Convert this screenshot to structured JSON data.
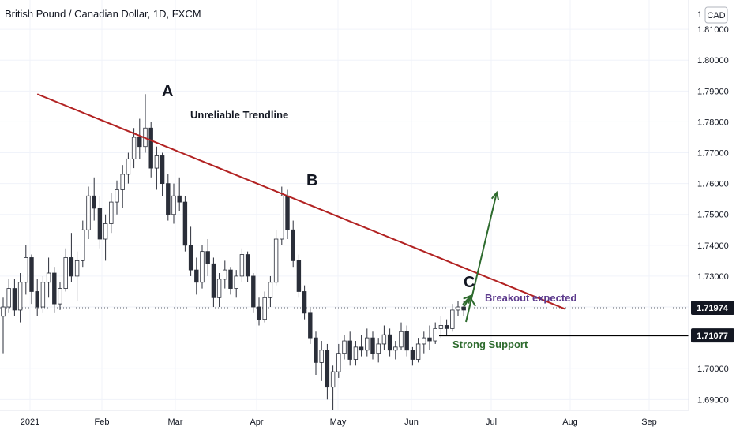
{
  "header": {
    "title": "British Pound / Canadian Dollar, 1D, FXCM",
    "currency_button": "CAD",
    "top_tick": "1"
  },
  "chart_data": {
    "type": "candlestick",
    "title": "British Pound / Canadian Dollar, 1D, FXCM",
    "y_ticks": [
      "1.81000",
      "1.80000",
      "1.79000",
      "1.78000",
      "1.77000",
      "1.76000",
      "1.75000",
      "1.74000",
      "1.73000",
      "1.72000",
      "1.70000",
      "1.69000"
    ],
    "x_ticks": [
      "2021",
      "Feb",
      "Mar",
      "Apr",
      "May",
      "Jun",
      "Jul",
      "Aug",
      "Sep"
    ],
    "ylim": [
      1.6865,
      1.8195
    ],
    "price_labels": {
      "last": "1.71974",
      "support": "1.71077"
    },
    "last_price": 1.71974,
    "support_price": 1.71077,
    "colors": {
      "up": "#26a69a",
      "down": "#ef5350",
      "trendline": "#b22222",
      "arrow": "#2e6b2e",
      "support_line": "#000000",
      "breakout_text": "#5c3a8c",
      "support_text": "#2e6b2e",
      "dotted": "#5d606b"
    },
    "annotations": {
      "A": "A",
      "B": "B",
      "C": "C",
      "trendline_label": "Unreliable Trendline",
      "breakout_label": "Breakout expected",
      "support_label": "Strong Support"
    },
    "trendline": [
      [
        6,
        1.789
      ],
      [
        106,
        1.7245
      ]
    ],
    "breakout_arrow": [
      [
        94,
        1.721
      ],
      [
        101,
        1.7595
      ]
    ],
    "small_arrow": [
      [
        93,
        1.7225
      ],
      [
        95,
        1.7245
      ]
    ],
    "candles": [
      [
        1.717,
        1.723,
        1.705,
        1.72
      ],
      [
        1.72,
        1.729,
        1.718,
        1.726
      ],
      [
        1.726,
        1.729,
        1.717,
        1.719
      ],
      [
        1.719,
        1.731,
        1.715,
        1.728
      ],
      [
        1.728,
        1.74,
        1.724,
        1.736
      ],
      [
        1.736,
        1.737,
        1.721,
        1.725
      ],
      [
        1.725,
        1.729,
        1.717,
        1.72
      ],
      [
        1.72,
        1.73,
        1.718,
        1.728
      ],
      [
        1.728,
        1.736,
        1.723,
        1.731
      ],
      [
        1.731,
        1.733,
        1.718,
        1.721
      ],
      [
        1.721,
        1.728,
        1.719,
        1.726
      ],
      [
        1.726,
        1.739,
        1.725,
        1.736
      ],
      [
        1.736,
        1.744,
        1.728,
        1.73
      ],
      [
        1.73,
        1.738,
        1.722,
        1.735
      ],
      [
        1.735,
        1.748,
        1.733,
        1.745
      ],
      [
        1.745,
        1.759,
        1.742,
        1.756
      ],
      [
        1.756,
        1.762,
        1.748,
        1.752
      ],
      [
        1.752,
        1.756,
        1.739,
        1.742
      ],
      [
        1.742,
        1.75,
        1.735,
        1.747
      ],
      [
        1.747,
        1.757,
        1.744,
        1.754
      ],
      [
        1.754,
        1.761,
        1.75,
        1.758
      ],
      [
        1.758,
        1.766,
        1.752,
        1.763
      ],
      [
        1.763,
        1.77,
        1.76,
        1.768
      ],
      [
        1.768,
        1.778,
        1.765,
        1.775
      ],
      [
        1.775,
        1.781,
        1.768,
        1.772
      ],
      [
        1.772,
        1.789,
        1.77,
        1.778
      ],
      [
        1.778,
        1.78,
        1.762,
        1.765
      ],
      [
        1.765,
        1.772,
        1.758,
        1.769
      ],
      [
        1.769,
        1.77,
        1.756,
        1.76
      ],
      [
        1.76,
        1.763,
        1.748,
        1.75
      ],
      [
        1.75,
        1.76,
        1.747,
        1.756
      ],
      [
        1.756,
        1.762,
        1.751,
        1.754
      ],
      [
        1.754,
        1.756,
        1.738,
        1.74
      ],
      [
        1.74,
        1.746,
        1.73,
        1.732
      ],
      [
        1.732,
        1.736,
        1.724,
        1.728
      ],
      [
        1.728,
        1.74,
        1.726,
        1.738
      ],
      [
        1.738,
        1.742,
        1.73,
        1.734
      ],
      [
        1.734,
        1.736,
        1.72,
        1.723
      ],
      [
        1.723,
        1.731,
        1.72,
        1.729
      ],
      [
        1.729,
        1.735,
        1.726,
        1.732
      ],
      [
        1.732,
        1.733,
        1.724,
        1.726
      ],
      [
        1.726,
        1.732,
        1.723,
        1.73
      ],
      [
        1.73,
        1.739,
        1.728,
        1.737
      ],
      [
        1.737,
        1.738,
        1.728,
        1.73
      ],
      [
        1.73,
        1.731,
        1.718,
        1.72
      ],
      [
        1.72,
        1.723,
        1.714,
        1.716
      ],
      [
        1.716,
        1.725,
        1.715,
        1.723
      ],
      [
        1.723,
        1.73,
        1.72,
        1.728
      ],
      [
        1.728,
        1.745,
        1.727,
        1.742
      ],
      [
        1.742,
        1.759,
        1.74,
        1.756
      ],
      [
        1.756,
        1.758,
        1.742,
        1.745
      ],
      [
        1.745,
        1.748,
        1.733,
        1.735
      ],
      [
        1.735,
        1.737,
        1.723,
        1.725
      ],
      [
        1.725,
        1.727,
        1.716,
        1.718
      ],
      [
        1.718,
        1.72,
        1.708,
        1.71
      ],
      [
        1.71,
        1.712,
        1.698,
        1.702
      ],
      [
        1.702,
        1.709,
        1.696,
        1.706
      ],
      [
        1.706,
        1.708,
        1.69,
        1.694
      ],
      [
        1.694,
        1.701,
        1.6865,
        1.699
      ],
      [
        1.699,
        1.708,
        1.697,
        1.705
      ],
      [
        1.705,
        1.711,
        1.703,
        1.709
      ],
      [
        1.709,
        1.712,
        1.701,
        1.703
      ],
      [
        1.703,
        1.709,
        1.701,
        1.707
      ],
      [
        1.707,
        1.711,
        1.704,
        1.706
      ],
      [
        1.706,
        1.713,
        1.704,
        1.71
      ],
      [
        1.71,
        1.712,
        1.703,
        1.705
      ],
      [
        1.705,
        1.71,
        1.702,
        1.708
      ],
      [
        1.708,
        1.714,
        1.706,
        1.711
      ],
      [
        1.711,
        1.713,
        1.704,
        1.706
      ],
      [
        1.706,
        1.709,
        1.703,
        1.707
      ],
      [
        1.707,
        1.715,
        1.706,
        1.712
      ],
      [
        1.712,
        1.714,
        1.704,
        1.706
      ],
      [
        1.706,
        1.707,
        1.701,
        1.703
      ],
      [
        1.703,
        1.71,
        1.702,
        1.708
      ],
      [
        1.708,
        1.712,
        1.705,
        1.71
      ],
      [
        1.71,
        1.714,
        1.706,
        1.709
      ],
      [
        1.709,
        1.715,
        1.708,
        1.713
      ],
      [
        1.713,
        1.717,
        1.71,
        1.714
      ],
      [
        1.714,
        1.716,
        1.711,
        1.713
      ],
      [
        1.713,
        1.721,
        1.712,
        1.719
      ],
      [
        1.719,
        1.722,
        1.717,
        1.72
      ],
      [
        1.72,
        1.722,
        1.717,
        1.719
      ]
    ]
  }
}
